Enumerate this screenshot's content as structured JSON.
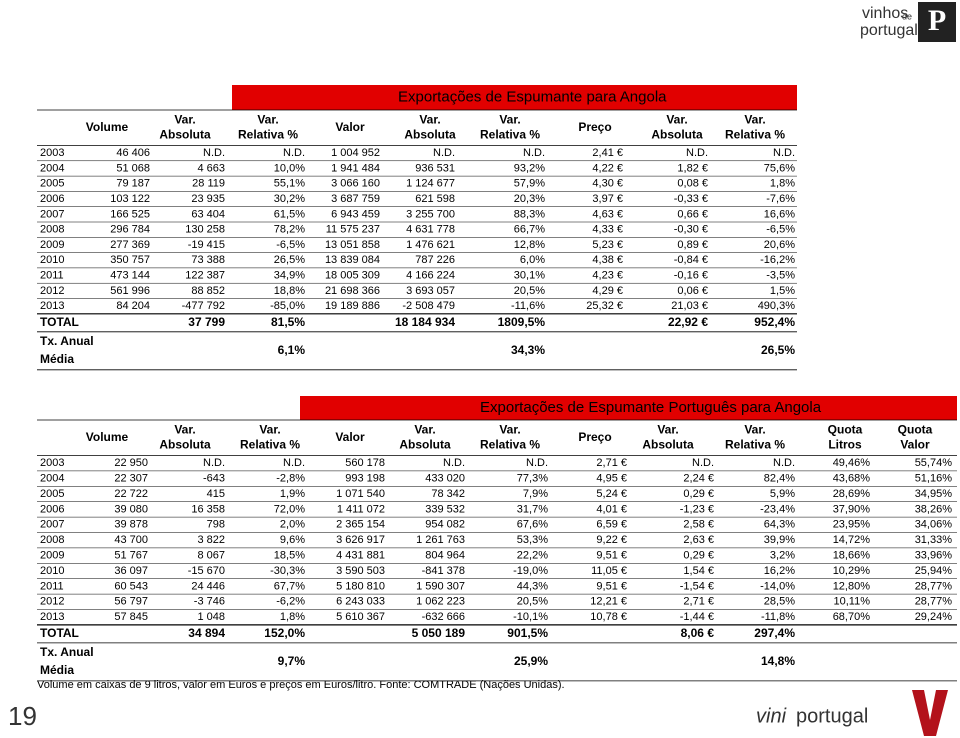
{
  "logo_top": {
    "line1": "vinhos",
    "de": "de",
    "line2": "portugal"
  },
  "tables": [
    {
      "title": "Exportações de Espumante para Angola",
      "headers": [
        [
          "Volume"
        ],
        [
          "Var.",
          "Absoluta"
        ],
        [
          "Var.",
          "Relativa %"
        ],
        [
          "Valor"
        ],
        [
          "Var.",
          "Absoluta"
        ],
        [
          "Var.",
          "Relativa %"
        ],
        [
          "Preço"
        ],
        [
          "Var.",
          "Absoluta"
        ],
        [
          "Var.",
          "Relativa %"
        ]
      ],
      "rows": [
        [
          "2003",
          "46 406",
          "N.D.",
          "N.D.",
          "1 004 952",
          "N.D.",
          "N.D.",
          "2,41 €",
          "N.D.",
          "N.D."
        ],
        [
          "2004",
          "51 068",
          "4 663",
          "10,0%",
          "1 941 484",
          "936 531",
          "93,2%",
          "4,22 €",
          "1,82 €",
          "75,6%"
        ],
        [
          "2005",
          "79 187",
          "28 119",
          "55,1%",
          "3 066 160",
          "1 124 677",
          "57,9%",
          "4,30 €",
          "0,08 €",
          "1,8%"
        ],
        [
          "2006",
          "103 122",
          "23 935",
          "30,2%",
          "3 687 759",
          "621 598",
          "20,3%",
          "3,97 €",
          "-0,33 €",
          "-7,6%"
        ],
        [
          "2007",
          "166 525",
          "63 404",
          "61,5%",
          "6 943 459",
          "3 255 700",
          "88,3%",
          "4,63 €",
          "0,66 €",
          "16,6%"
        ],
        [
          "2008",
          "296 784",
          "130 258",
          "78,2%",
          "11 575 237",
          "4 631 778",
          "66,7%",
          "4,33 €",
          "-0,30 €",
          "-6,5%"
        ],
        [
          "2009",
          "277 369",
          "-19 415",
          "-6,5%",
          "13 051 858",
          "1 476 621",
          "12,8%",
          "5,23 €",
          "0,89 €",
          "20,6%"
        ],
        [
          "2010",
          "350 757",
          "73 388",
          "26,5%",
          "13 839 084",
          "787 226",
          "6,0%",
          "4,38 €",
          "-0,84 €",
          "-16,2%"
        ],
        [
          "2011",
          "473 144",
          "122 387",
          "34,9%",
          "18 005 309",
          "4 166 224",
          "30,1%",
          "4,23 €",
          "-0,16 €",
          "-3,5%"
        ],
        [
          "2012",
          "561 996",
          "88 852",
          "18,8%",
          "21 698 366",
          "3 693 057",
          "20,5%",
          "4,29 €",
          "0,06 €",
          "1,5%"
        ],
        [
          "2013",
          "84 204",
          "-477 792",
          "-85,0%",
          "19 189 886",
          "-2 508 479",
          "-11,6%",
          "25,32 €",
          "21,03 €",
          "490,3%"
        ]
      ],
      "total": {
        "label": "TOTAL",
        "volume_var_abs": "37 799",
        "volume_var_rel": "81,5%",
        "valor_var_abs": "18 184 934",
        "valor_var_rel": "1809,5%",
        "preco_var_abs": "22,92 €",
        "preco_var_rel": "952,4%"
      },
      "annual": {
        "label": [
          "Tx. Anual",
          "Média"
        ],
        "volume": "6,1%",
        "valor": "34,3%",
        "preco": "26,5%"
      }
    },
    {
      "title": "Exportações de Espumante Português para Angola",
      "headers": [
        [
          "Volume"
        ],
        [
          "Var.",
          "Absoluta"
        ],
        [
          "Var.",
          "Relativa %"
        ],
        [
          "Valor"
        ],
        [
          "Var.",
          "Absoluta"
        ],
        [
          "Var.",
          "Relativa %"
        ],
        [
          "Preço"
        ],
        [
          "Var.",
          "Absoluta"
        ],
        [
          "Var.",
          "Relativa %"
        ],
        [
          "Quota",
          "Litros"
        ],
        [
          "Quota",
          "Valor"
        ]
      ],
      "rows": [
        [
          "2003",
          "22 950",
          "N.D.",
          "N.D.",
          "560 178",
          "N.D.",
          "N.D.",
          "2,71 €",
          "N.D.",
          "N.D.",
          "49,46%",
          "55,74%"
        ],
        [
          "2004",
          "22 307",
          "-643",
          "-2,8%",
          "993 198",
          "433 020",
          "77,3%",
          "4,95 €",
          "2,24 €",
          "82,4%",
          "43,68%",
          "51,16%"
        ],
        [
          "2005",
          "22 722",
          "415",
          "1,9%",
          "1 071 540",
          "78 342",
          "7,9%",
          "5,24 €",
          "0,29 €",
          "5,9%",
          "28,69%",
          "34,95%"
        ],
        [
          "2006",
          "39 080",
          "16 358",
          "72,0%",
          "1 411 072",
          "339 532",
          "31,7%",
          "4,01 €",
          "-1,23 €",
          "-23,4%",
          "37,90%",
          "38,26%"
        ],
        [
          "2007",
          "39 878",
          "798",
          "2,0%",
          "2 365 154",
          "954 082",
          "67,6%",
          "6,59 €",
          "2,58 €",
          "64,3%",
          "23,95%",
          "34,06%"
        ],
        [
          "2008",
          "43 700",
          "3 822",
          "9,6%",
          "3 626 917",
          "1 261 763",
          "53,3%",
          "9,22 €",
          "2,63 €",
          "39,9%",
          "14,72%",
          "31,33%"
        ],
        [
          "2009",
          "51 767",
          "8 067",
          "18,5%",
          "4 431 881",
          "804 964",
          "22,2%",
          "9,51 €",
          "0,29 €",
          "3,2%",
          "18,66%",
          "33,96%"
        ],
        [
          "2010",
          "36 097",
          "-15 670",
          "-30,3%",
          "3 590 503",
          "-841 378",
          "-19,0%",
          "11,05 €",
          "1,54 €",
          "16,2%",
          "10,29%",
          "25,94%"
        ],
        [
          "2011",
          "60 543",
          "24 446",
          "67,7%",
          "5 180 810",
          "1 590 307",
          "44,3%",
          "9,51 €",
          "-1,54 €",
          "-14,0%",
          "12,80%",
          "28,77%"
        ],
        [
          "2012",
          "56 797",
          "-3 746",
          "-6,2%",
          "6 243 033",
          "1 062 223",
          "20,5%",
          "12,21 €",
          "2,71 €",
          "28,5%",
          "10,11%",
          "28,77%"
        ],
        [
          "2013",
          "57 845",
          "1 048",
          "1,8%",
          "5 610 367",
          "-632 666",
          "-10,1%",
          "10,78 €",
          "-1,44 €",
          "-11,8%",
          "68,70%",
          "29,24%"
        ]
      ],
      "total": {
        "label": "TOTAL",
        "volume_var_abs": "34 894",
        "volume_var_rel": "152,0%",
        "valor_var_abs": "5 050 189",
        "valor_var_rel": "901,5%",
        "preco_var_abs": "8,06 €",
        "preco_var_rel": "297,4%"
      },
      "annual": {
        "label": [
          "Tx. Anual",
          "Média"
        ],
        "volume": "9,7%",
        "valor": "25,9%",
        "preco": "14,8%"
      }
    }
  ],
  "footnote": "Volume em caixas de 9 litros, valor em Euros e preços em Euros/litro. Fonte: COMTRADE (Nações Unidas).",
  "page_number": "19",
  "logo_bottom": {
    "word1": "vini",
    "word2": "portugal"
  }
}
